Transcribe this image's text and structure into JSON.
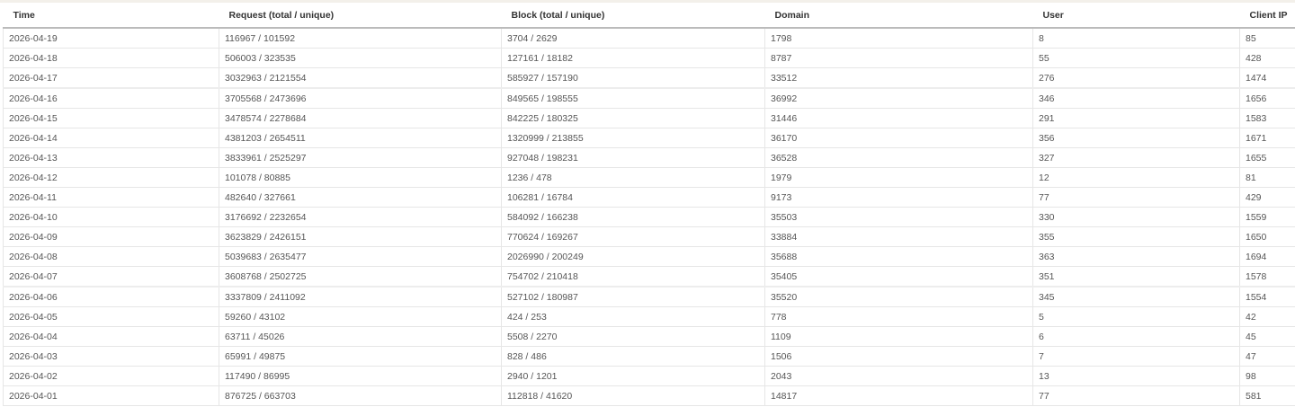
{
  "table": {
    "columns": [
      "Time",
      "Request (total / unique)",
      "Block (total / unique)",
      "Domain",
      "User",
      "Client IP"
    ],
    "rows": [
      [
        "2026-04-19",
        "116967 / 101592",
        "3704 / 2629",
        "1798",
        "8",
        "85"
      ],
      [
        "2026-04-18",
        "506003 / 323535",
        "127161 / 18182",
        "8787",
        "55",
        "428"
      ],
      [
        "2026-04-17",
        "3032963 / 2121554",
        "585927 / 157190",
        "33512",
        "276",
        "1474"
      ],
      [
        "2026-04-16",
        "3705568 / 2473696",
        "849565 / 198555",
        "36992",
        "346",
        "1656"
      ],
      [
        "2026-04-15",
        "3478574 / 2278684",
        "842225 / 180325",
        "31446",
        "291",
        "1583"
      ],
      [
        "2026-04-14",
        "4381203 / 2654511",
        "1320999 / 213855",
        "36170",
        "356",
        "1671"
      ],
      [
        "2026-04-13",
        "3833961 / 2525297",
        "927048 / 198231",
        "36528",
        "327",
        "1655"
      ],
      [
        "2026-04-12",
        "101078 / 80885",
        "1236 / 478",
        "1979",
        "12",
        "81"
      ],
      [
        "2026-04-11",
        "482640 / 327661",
        "106281 / 16784",
        "9173",
        "77",
        "429"
      ],
      [
        "2026-04-10",
        "3176692 / 2232654",
        "584092 / 166238",
        "35503",
        "330",
        "1559"
      ],
      [
        "2026-04-09",
        "3623829 / 2426151",
        "770624 / 169267",
        "33884",
        "355",
        "1650"
      ],
      [
        "2026-04-08",
        "5039683 / 2635477",
        "2026990 / 200249",
        "35688",
        "363",
        "1694"
      ],
      [
        "2026-04-07",
        "3608768 / 2502725",
        "754702 / 210418",
        "35405",
        "351",
        "1578"
      ],
      [
        "2026-04-06",
        "3337809 / 2411092",
        "527102 / 180987",
        "35520",
        "345",
        "1554"
      ],
      [
        "2026-04-05",
        "59260 / 43102",
        "424 / 253",
        "778",
        "5",
        "42"
      ],
      [
        "2026-04-04",
        "63711 / 45026",
        "5508 / 2270",
        "1109",
        "6",
        "45"
      ],
      [
        "2026-04-03",
        "65991 / 49875",
        "828 / 486",
        "1506",
        "7",
        "47"
      ],
      [
        "2026-04-02",
        "117490 / 86995",
        "2940 / 1201",
        "2043",
        "13",
        "98"
      ],
      [
        "2026-04-01",
        "876725 / 663703",
        "112818 / 41620",
        "14817",
        "77",
        "581"
      ]
    ]
  }
}
